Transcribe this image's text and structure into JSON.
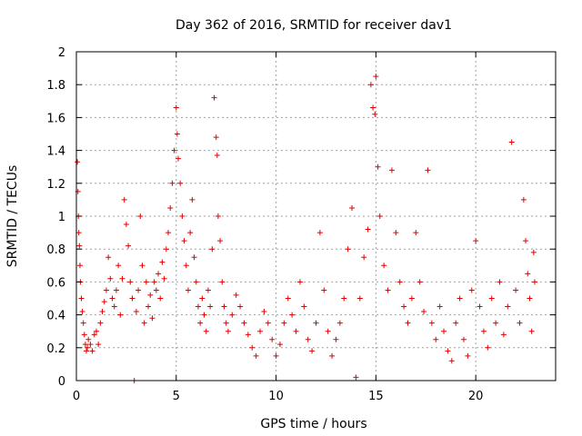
{
  "chart_data": {
    "type": "scatter",
    "title": "Day 362 of 2016, SRMTID for receiver dav1",
    "xlabel": "GPS time / hours",
    "ylabel": "SRMTID / TECUs",
    "xlim": [
      0,
      24
    ],
    "ylim": [
      0,
      2
    ],
    "xticks": [
      0,
      5,
      10,
      15,
      20
    ],
    "yticks": [
      0,
      0.2,
      0.4,
      0.6,
      0.8,
      1,
      1.2,
      1.4,
      1.6,
      1.8,
      2
    ],
    "xtick_labels": [
      "0",
      "5",
      "10",
      "15",
      "20"
    ],
    "ytick_labels": [
      "0",
      "0.2",
      "0.4",
      "0.6",
      "0.8",
      "1",
      "1.2",
      "1.4",
      "1.6",
      "1.8",
      "2"
    ],
    "grid": true,
    "marker": "+",
    "color": "#e00000",
    "series": [
      {
        "name": "SRMTID",
        "points": [
          [
            0.05,
            1.33
          ],
          [
            0.08,
            1.15
          ],
          [
            0.1,
            1.0
          ],
          [
            0.12,
            0.9
          ],
          [
            0.15,
            0.82
          ],
          [
            0.18,
            0.7
          ],
          [
            0.2,
            0.6
          ],
          [
            0.25,
            0.5
          ],
          [
            0.3,
            0.42
          ],
          [
            0.35,
            0.35
          ],
          [
            0.4,
            0.28
          ],
          [
            0.45,
            0.22
          ],
          [
            0.5,
            0.18
          ],
          [
            0.55,
            0.2
          ],
          [
            0.6,
            0.25
          ],
          [
            0.7,
            0.22
          ],
          [
            0.8,
            0.18
          ],
          [
            0.9,
            0.28
          ],
          [
            1.0,
            0.3
          ],
          [
            1.1,
            0.22
          ],
          [
            1.2,
            0.35
          ],
          [
            1.3,
            0.42
          ],
          [
            1.4,
            0.48
          ],
          [
            1.5,
            0.55
          ],
          [
            1.6,
            0.75
          ],
          [
            1.7,
            0.62
          ],
          [
            1.8,
            0.5
          ],
          [
            1.9,
            0.45
          ],
          [
            2.0,
            0.55
          ],
          [
            2.1,
            0.7
          ],
          [
            2.2,
            0.4
          ],
          [
            2.3,
            0.62
          ],
          [
            2.4,
            1.1
          ],
          [
            2.5,
            0.95
          ],
          [
            2.6,
            0.82
          ],
          [
            2.7,
            0.6
          ],
          [
            2.8,
            0.5
          ],
          [
            2.9,
            0.0
          ],
          [
            3.0,
            0.42
          ],
          [
            3.1,
            0.55
          ],
          [
            3.2,
            1.0
          ],
          [
            3.3,
            0.7
          ],
          [
            3.4,
            0.35
          ],
          [
            3.5,
            0.6
          ],
          [
            3.6,
            0.45
          ],
          [
            3.7,
            0.52
          ],
          [
            3.8,
            0.38
          ],
          [
            3.9,
            0.6
          ],
          [
            4.0,
            0.55
          ],
          [
            4.1,
            0.65
          ],
          [
            4.2,
            0.5
          ],
          [
            4.3,
            0.72
          ],
          [
            4.4,
            0.62
          ],
          [
            4.5,
            0.8
          ],
          [
            4.6,
            0.9
          ],
          [
            4.7,
            1.05
          ],
          [
            4.8,
            1.2
          ],
          [
            4.9,
            1.4
          ],
          [
            5.0,
            1.66
          ],
          [
            5.05,
            1.5
          ],
          [
            5.1,
            1.35
          ],
          [
            5.2,
            1.2
          ],
          [
            5.3,
            1.0
          ],
          [
            5.4,
            0.85
          ],
          [
            5.5,
            0.7
          ],
          [
            5.6,
            0.55
          ],
          [
            5.7,
            0.9
          ],
          [
            5.8,
            1.1
          ],
          [
            5.9,
            0.75
          ],
          [
            6.0,
            0.6
          ],
          [
            6.1,
            0.45
          ],
          [
            6.2,
            0.35
          ],
          [
            6.3,
            0.5
          ],
          [
            6.4,
            0.4
          ],
          [
            6.5,
            0.3
          ],
          [
            6.6,
            0.55
          ],
          [
            6.7,
            0.45
          ],
          [
            6.8,
            0.8
          ],
          [
            6.9,
            1.72
          ],
          [
            7.0,
            1.48
          ],
          [
            7.05,
            1.37
          ],
          [
            7.1,
            1.0
          ],
          [
            7.2,
            0.85
          ],
          [
            7.3,
            0.6
          ],
          [
            7.4,
            0.45
          ],
          [
            7.5,
            0.35
          ],
          [
            7.6,
            0.3
          ],
          [
            7.8,
            0.4
          ],
          [
            8.0,
            0.52
          ],
          [
            8.2,
            0.45
          ],
          [
            8.4,
            0.35
          ],
          [
            8.6,
            0.28
          ],
          [
            8.8,
            0.2
          ],
          [
            9.0,
            0.15
          ],
          [
            9.2,
            0.3
          ],
          [
            9.4,
            0.42
          ],
          [
            9.6,
            0.35
          ],
          [
            9.8,
            0.25
          ],
          [
            10.0,
            0.15
          ],
          [
            10.2,
            0.22
          ],
          [
            10.4,
            0.35
          ],
          [
            10.6,
            0.5
          ],
          [
            10.8,
            0.4
          ],
          [
            11.0,
            0.3
          ],
          [
            11.2,
            0.6
          ],
          [
            11.4,
            0.45
          ],
          [
            11.6,
            0.25
          ],
          [
            11.8,
            0.18
          ],
          [
            12.0,
            0.35
          ],
          [
            12.2,
            0.9
          ],
          [
            12.4,
            0.55
          ],
          [
            12.6,
            0.3
          ],
          [
            12.8,
            0.15
          ],
          [
            13.0,
            0.25
          ],
          [
            13.2,
            0.35
          ],
          [
            13.4,
            0.5
          ],
          [
            13.6,
            0.8
          ],
          [
            13.8,
            1.05
          ],
          [
            14.0,
            0.02
          ],
          [
            14.2,
            0.5
          ],
          [
            14.4,
            0.75
          ],
          [
            14.6,
            0.92
          ],
          [
            14.75,
            1.8
          ],
          [
            14.85,
            1.66
          ],
          [
            14.95,
            1.62
          ],
          [
            15.0,
            1.85
          ],
          [
            15.1,
            1.3
          ],
          [
            15.2,
            1.0
          ],
          [
            15.4,
            0.7
          ],
          [
            15.6,
            0.55
          ],
          [
            15.8,
            1.28
          ],
          [
            16.0,
            0.9
          ],
          [
            16.2,
            0.6
          ],
          [
            16.4,
            0.45
          ],
          [
            16.6,
            0.35
          ],
          [
            16.8,
            0.5
          ],
          [
            17.0,
            0.9
          ],
          [
            17.2,
            0.6
          ],
          [
            17.4,
            0.42
          ],
          [
            17.6,
            1.28
          ],
          [
            17.8,
            0.35
          ],
          [
            18.0,
            0.25
          ],
          [
            18.2,
            0.45
          ],
          [
            18.4,
            0.3
          ],
          [
            18.6,
            0.18
          ],
          [
            18.8,
            0.12
          ],
          [
            19.0,
            0.35
          ],
          [
            19.2,
            0.5
          ],
          [
            19.4,
            0.25
          ],
          [
            19.6,
            0.15
          ],
          [
            19.8,
            0.55
          ],
          [
            20.0,
            0.85
          ],
          [
            20.2,
            0.45
          ],
          [
            20.4,
            0.3
          ],
          [
            20.6,
            0.2
          ],
          [
            20.8,
            0.5
          ],
          [
            21.0,
            0.35
          ],
          [
            21.2,
            0.6
          ],
          [
            21.4,
            0.28
          ],
          [
            21.6,
            0.45
          ],
          [
            21.8,
            1.45
          ],
          [
            22.0,
            0.55
          ],
          [
            22.2,
            0.35
          ],
          [
            22.4,
            1.1
          ],
          [
            22.5,
            0.85
          ],
          [
            22.6,
            0.65
          ],
          [
            22.7,
            0.5
          ],
          [
            22.8,
            0.3
          ],
          [
            22.9,
            0.78
          ],
          [
            22.95,
            0.6
          ]
        ]
      }
    ]
  }
}
